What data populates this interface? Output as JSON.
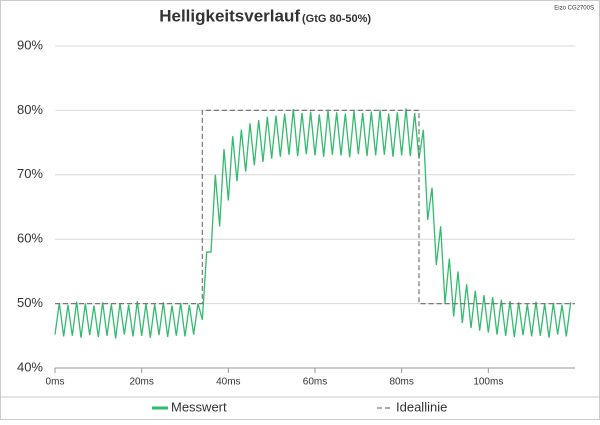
{
  "chart_data": {
    "type": "line",
    "title": "Helligkeitsverlauf",
    "subtitle": "(GtG 80-50%)",
    "corner_label": "Eizo CG2700S",
    "xlim": [
      0,
      120
    ],
    "ylim": [
      40,
      90
    ],
    "grid": true,
    "legend": "bottom",
    "xticks": [
      {
        "value": 0,
        "label": "0ms"
      },
      {
        "value": 20,
        "label": "20ms"
      },
      {
        "value": 40,
        "label": "40ms"
      },
      {
        "value": 60,
        "label": "60ms"
      },
      {
        "value": 80,
        "label": "80ms"
      },
      {
        "value": 100,
        "label": "100ms"
      }
    ],
    "yticks": [
      {
        "value": 40,
        "label": "40%"
      },
      {
        "value": 50,
        "label": "50%"
      },
      {
        "value": 60,
        "label": "60%"
      },
      {
        "value": 70,
        "label": "70%"
      },
      {
        "value": 80,
        "label": "80%"
      },
      {
        "value": 90,
        "label": "90%"
      }
    ],
    "series": [
      {
        "name": "Messwert",
        "color": "#33bb6e",
        "dashed": false,
        "x": [
          0,
          1,
          2,
          3,
          4,
          5,
          6,
          7,
          8,
          9,
          10,
          11,
          12,
          13,
          14,
          15,
          16,
          17,
          18,
          19,
          20,
          21,
          22,
          23,
          24,
          25,
          26,
          27,
          28,
          29,
          30,
          31,
          32,
          33,
          34,
          35,
          36,
          37,
          38,
          39,
          40,
          41,
          42,
          43,
          44,
          45,
          46,
          47,
          48,
          49,
          50,
          51,
          52,
          53,
          54,
          55,
          56,
          57,
          58,
          59,
          60,
          61,
          62,
          63,
          64,
          65,
          66,
          67,
          68,
          69,
          70,
          71,
          72,
          73,
          74,
          75,
          76,
          77,
          78,
          79,
          80,
          81,
          82,
          83,
          84,
          85,
          86,
          87,
          88,
          89,
          90,
          91,
          92,
          93,
          94,
          95,
          96,
          97,
          98,
          99,
          100,
          101,
          102,
          103,
          104,
          105,
          106,
          107,
          108,
          109,
          110,
          111,
          112,
          113,
          114,
          115,
          116,
          117,
          118,
          119
        ],
        "values": [
          45.2,
          50.1,
          44.9,
          49.8,
          45.0,
          50.3,
          44.7,
          50.0,
          45.1,
          49.7,
          44.8,
          50.2,
          45.0,
          49.9,
          44.6,
          50.1,
          45.2,
          49.8,
          44.9,
          50.4,
          45.0,
          50.0,
          44.7,
          49.9,
          45.1,
          50.2,
          44.8,
          49.7,
          45.0,
          50.1,
          44.9,
          49.8,
          45.2,
          50.0,
          47.5,
          58,
          58,
          70,
          62,
          74,
          66,
          76,
          69,
          77,
          70.5,
          78,
          71.5,
          78.5,
          72,
          79,
          72.5,
          79.2,
          72.8,
          79.5,
          73.1,
          80.2,
          72.9,
          79.6,
          73.2,
          79.8,
          73.0,
          79.4,
          72.8,
          80.0,
          73.1,
          79.7,
          73.0,
          79.5,
          72.7,
          79.9,
          73.2,
          79.6,
          72.9,
          79.8,
          73.0,
          80.1,
          73.1,
          79.5,
          72.8,
          79.7,
          73.0,
          80.3,
          72.9,
          79.6,
          72.5,
          77,
          63,
          68,
          56,
          62,
          50,
          57,
          48,
          55,
          47,
          53,
          46.2,
          52,
          45.8,
          51.3,
          45.5,
          51,
          45.2,
          50.6,
          45.0,
          50.4,
          44.8,
          50.2,
          45.1,
          49.9,
          44.9,
          50.3,
          45.0,
          50.0,
          44.7,
          50.1,
          45.2,
          49.8,
          44.9,
          50.2
        ]
      },
      {
        "name": "Ideallinie",
        "color": "#777777",
        "dashed": true,
        "x": [
          0,
          34,
          34,
          84,
          84,
          120
        ],
        "values": [
          50,
          50,
          80,
          80,
          50,
          50
        ]
      }
    ]
  }
}
